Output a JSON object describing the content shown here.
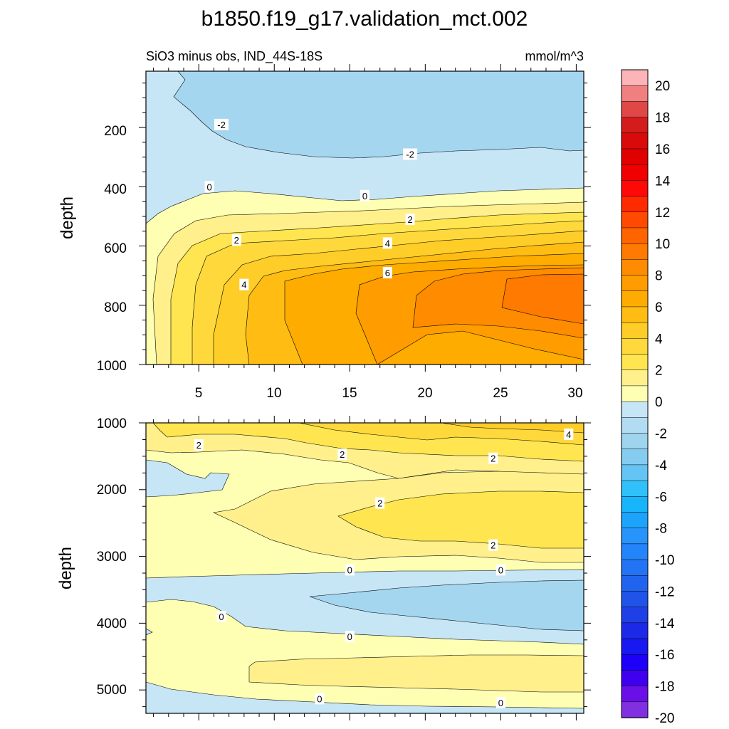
{
  "title": "b1850.f19_g17.validation_mct.002",
  "subtitle_left": "SiO3 minus obs, IND_44S-18S",
  "subtitle_right": "mmol/m^3",
  "chart_data": [
    {
      "type": "heatmap",
      "panel": "upper",
      "ylabel": "depth",
      "xlim": [
        1.5,
        30.5
      ],
      "ylim": [
        1000,
        10
      ],
      "y_reversed": true,
      "x_ticks": [
        "5",
        "10",
        "15",
        "20",
        "25",
        "30"
      ],
      "y_ticks": [
        "200",
        "400",
        "600",
        "800",
        "1000"
      ],
      "contour_labels": [
        {
          "text": "-2",
          "x": 6.5,
          "y": 190
        },
        {
          "text": "-2",
          "x": 19.0,
          "y": 290
        },
        {
          "text": "0",
          "x": 5.7,
          "y": 400
        },
        {
          "text": "0",
          "x": 16.0,
          "y": 430
        },
        {
          "text": "2",
          "x": 19.0,
          "y": 510
        },
        {
          "text": "2",
          "x": 7.5,
          "y": 580
        },
        {
          "text": "4",
          "x": 17.5,
          "y": 590
        },
        {
          "text": "4",
          "x": 8.0,
          "y": 730
        },
        {
          "text": "6",
          "x": 17.5,
          "y": 690
        }
      ],
      "levels_note": "Positive anomaly (up to ~10) in the eastern part near 750-850 m; negative (-2 to -4) near 100-350 m."
    },
    {
      "type": "heatmap",
      "panel": "lower",
      "ylabel": "depth",
      "xlim": [
        1.5,
        30.5
      ],
      "ylim": [
        5350,
        1000
      ],
      "y_reversed": true,
      "y_ticks": [
        "1000",
        "2000",
        "3000",
        "4000",
        "5000"
      ],
      "contour_labels": [
        {
          "text": "4",
          "x": 29.5,
          "y": 1170
        },
        {
          "text": "2",
          "x": 5.0,
          "y": 1330
        },
        {
          "text": "2",
          "x": 14.5,
          "y": 1470
        },
        {
          "text": "2",
          "x": 24.5,
          "y": 1530
        },
        {
          "text": "2",
          "x": 17.0,
          "y": 2200
        },
        {
          "text": "2",
          "x": 24.5,
          "y": 2830
        },
        {
          "text": "0",
          "x": 15.0,
          "y": 3200
        },
        {
          "text": "0",
          "x": 25.0,
          "y": 3200
        },
        {
          "text": "0",
          "x": 6.5,
          "y": 3900
        },
        {
          "text": "0",
          "x": 15.0,
          "y": 4200
        },
        {
          "text": "0",
          "x": 13.0,
          "y": 5130
        },
        {
          "text": "0",
          "x": 25.0,
          "y": 5190
        }
      ]
    }
  ],
  "colorbar": {
    "labels": [
      "20",
      "18",
      "16",
      "14",
      "12",
      "10",
      "8",
      "6",
      "4",
      "2",
      "0",
      "-2",
      "-4",
      "-6",
      "-8",
      "-10",
      "-12",
      "-14",
      "-16",
      "-18",
      "-20"
    ],
    "colors": [
      "#fcb4b6",
      "#f08080",
      "#e04848",
      "#d41c1c",
      "#d80a0a",
      "#e00000",
      "#f00000",
      "#ff0808",
      "#ff2a00",
      "#ff4a00",
      "#ff6400",
      "#ff7a00",
      "#ff8c00",
      "#ff9c00",
      "#ffac00",
      "#ffbd14",
      "#ffcd28",
      "#ffd93c",
      "#ffe650",
      "#fff08c",
      "#ffffb4",
      "#c6e6f6",
      "#b2dcf2",
      "#9ed4ee",
      "#84ccf0",
      "#64c4f4",
      "#30c0fa",
      "#18b4fa",
      "#1ca4fc",
      "#2694fa",
      "#2484fa",
      "#2274f4",
      "#2064ee",
      "#2054e8",
      "#1e40e6",
      "#1c2ae8",
      "#1818f0",
      "#1c00f8",
      "#4000f0",
      "#6a10e6",
      "#8030e0"
    ]
  }
}
